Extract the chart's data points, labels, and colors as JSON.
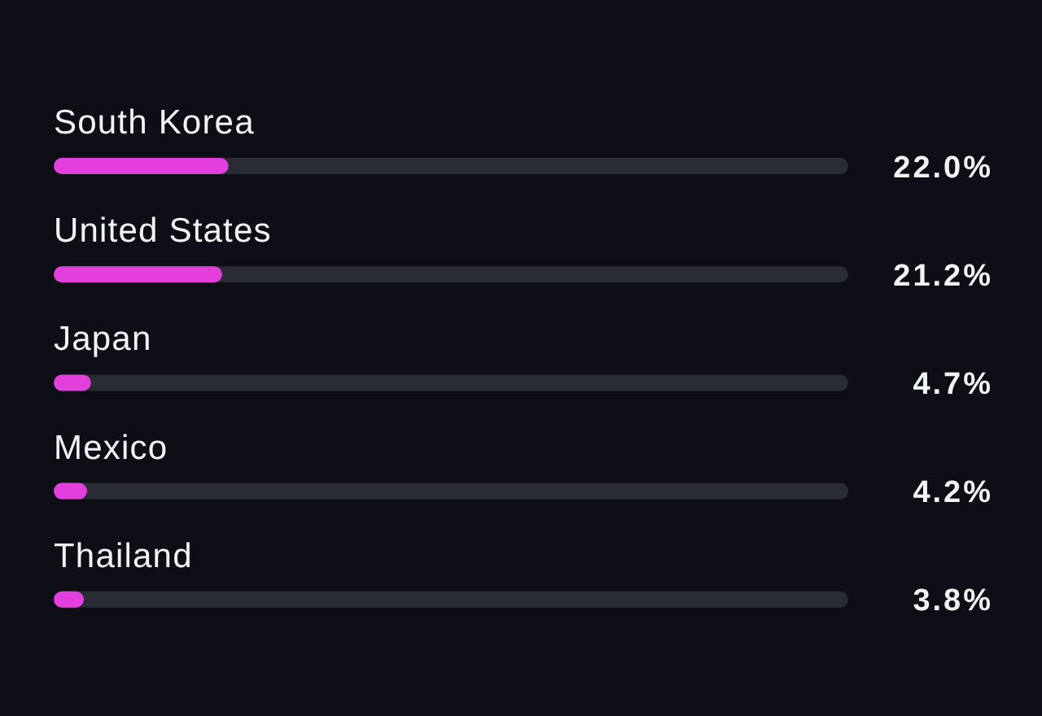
{
  "chart_data": {
    "type": "bar",
    "orientation": "horizontal",
    "categories": [
      "South Korea",
      "United States",
      "Japan",
      "Mexico",
      "Thailand"
    ],
    "values": [
      22.0,
      21.2,
      4.7,
      4.2,
      3.8
    ],
    "value_labels": [
      "22.0%",
      "21.2%",
      "4.7%",
      "4.2%",
      "3.8%"
    ],
    "color": "#e33fdc",
    "xlim": [
      0,
      100
    ],
    "tick_labels": false
  }
}
